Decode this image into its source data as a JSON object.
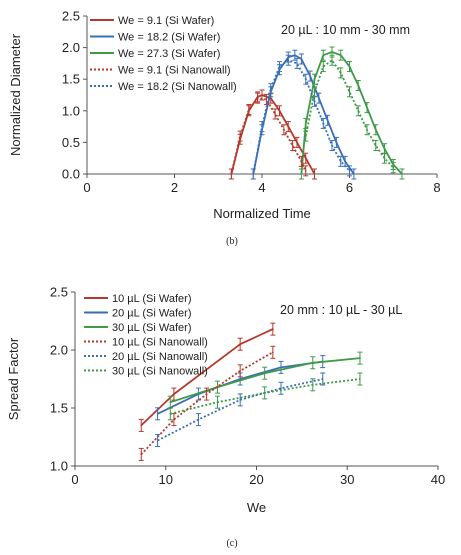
{
  "chart_data": [
    {
      "type": "line",
      "panel_label": "(b)",
      "title": "",
      "annotation": "20 µL : 10 mm - 30 mm",
      "xlabel": "Normalized Time",
      "ylabel": "Normalized Diameter",
      "xlim": [
        0,
        8
      ],
      "ylim": [
        0,
        2.5
      ],
      "xticks": [
        "0",
        "2",
        "4",
        "6",
        "8"
      ],
      "yticks": [
        "0.0",
        "0.5",
        "1.0",
        "1.5",
        "2.0",
        "2.5"
      ],
      "legend_position": "top-left",
      "grid": false,
      "series": [
        {
          "name": "We = 9.1 (Si Wafer)",
          "style": "solid",
          "color": "#b5382d",
          "x": [
            3.3,
            3.5,
            3.7,
            3.9,
            4.0,
            4.2,
            4.4,
            4.6,
            4.8,
            5.0,
            5.2
          ],
          "y": [
            0.0,
            0.55,
            1.0,
            1.22,
            1.25,
            1.2,
            1.0,
            0.75,
            0.5,
            0.25,
            0.0
          ]
        },
        {
          "name": "We = 18.2 (Si Wafer)",
          "style": "solid",
          "color": "#3a6fb8",
          "x": [
            3.8,
            4.0,
            4.2,
            4.4,
            4.6,
            4.75,
            4.9,
            5.1,
            5.3,
            5.5,
            5.7,
            5.9,
            6.1
          ],
          "y": [
            0.0,
            0.7,
            1.3,
            1.65,
            1.85,
            1.88,
            1.82,
            1.55,
            1.2,
            0.85,
            0.5,
            0.2,
            0.0
          ]
        },
        {
          "name": "We = 27.3 (Si Wafer)",
          "style": "solid",
          "color": "#3e9a47",
          "x": [
            4.9,
            5.0,
            5.2,
            5.4,
            5.6,
            5.8,
            6.0,
            6.2,
            6.4,
            6.6,
            6.8,
            7.0,
            7.2
          ],
          "y": [
            0.0,
            0.8,
            1.5,
            1.88,
            1.93,
            1.88,
            1.7,
            1.4,
            1.05,
            0.7,
            0.4,
            0.15,
            0.0
          ]
        },
        {
          "name": "We = 9.1 (Si Nanowall)",
          "style": "dotted",
          "color": "#b5382d",
          "x": [
            3.3,
            3.5,
            3.7,
            3.9,
            4.1,
            4.3,
            4.5,
            4.7,
            4.9,
            5.0
          ],
          "y": [
            0.0,
            0.6,
            1.02,
            1.2,
            1.18,
            0.95,
            0.7,
            0.45,
            0.2,
            0.05
          ]
        },
        {
          "name": "We = 18.2 (Si Nanowall)",
          "style": "dotted",
          "color": "#3a6fb8",
          "x": [
            3.8,
            4.0,
            4.2,
            4.4,
            4.6,
            4.8,
            5.0,
            5.2,
            5.4,
            5.6,
            5.8,
            6.0
          ],
          "y": [
            0.0,
            0.75,
            1.35,
            1.7,
            1.8,
            1.75,
            1.5,
            1.15,
            0.8,
            0.45,
            0.2,
            0.05
          ]
        },
        {
          "name": "",
          "style": "dotted",
          "color": "#3e9a47",
          "x": [
            5.0,
            5.2,
            5.4,
            5.6,
            5.8,
            6.0,
            6.2,
            6.4,
            6.6,
            6.8,
            7.0
          ],
          "y": [
            0.6,
            1.3,
            1.7,
            1.8,
            1.6,
            1.3,
            1.0,
            0.7,
            0.45,
            0.25,
            0.1
          ]
        }
      ]
    },
    {
      "type": "line",
      "panel_label": "(c)",
      "title": "",
      "annotation": "20 mm : 10 µL - 30 µL",
      "xlabel": "We",
      "ylabel": "Spread Factor",
      "xlim": [
        0,
        40
      ],
      "ylim": [
        1.0,
        2.5
      ],
      "xticks": [
        "0",
        "10",
        "20",
        "30",
        "40"
      ],
      "yticks": [
        "1.0",
        "1.5",
        "2.0",
        "2.5"
      ],
      "legend_position": "top-left",
      "grid": false,
      "series": [
        {
          "name": "10 µL (Si Wafer)",
          "style": "solid",
          "color": "#b5382d",
          "x": [
            7.3,
            10.9,
            18.2,
            21.8
          ],
          "y": [
            1.35,
            1.62,
            2.05,
            2.18
          ]
        },
        {
          "name": "20 µL (Si Wafer)",
          "style": "solid",
          "color": "#3a6fb8",
          "x": [
            9.1,
            13.6,
            18.2,
            22.7,
            27.3
          ],
          "y": [
            1.45,
            1.62,
            1.75,
            1.85,
            1.9
          ]
        },
        {
          "name": "30 µL (Si Wafer)",
          "style": "solid",
          "color": "#3e9a47",
          "x": [
            10.5,
            15.7,
            20.9,
            26.2,
            31.4
          ],
          "y": [
            1.55,
            1.68,
            1.8,
            1.89,
            1.93
          ]
        },
        {
          "name": "10 µL (Si Nanowall)",
          "style": "dotted",
          "color": "#b5382d",
          "x": [
            7.3,
            10.9,
            14.5,
            18.2,
            21.8
          ],
          "y": [
            1.1,
            1.4,
            1.62,
            1.82,
            1.98
          ]
        },
        {
          "name": "20 µL (Si Nanowall)",
          "style": "dotted",
          "color": "#3a6fb8",
          "x": [
            9.1,
            13.6,
            18.2,
            22.7,
            27.3
          ],
          "y": [
            1.22,
            1.4,
            1.57,
            1.67,
            1.75
          ]
        },
        {
          "name": "30 µL (Si Nanowall)",
          "style": "dotted",
          "color": "#3e9a47",
          "x": [
            10.5,
            15.7,
            20.9,
            26.2,
            31.4
          ],
          "y": [
            1.45,
            1.55,
            1.63,
            1.7,
            1.75
          ]
        }
      ]
    }
  ]
}
